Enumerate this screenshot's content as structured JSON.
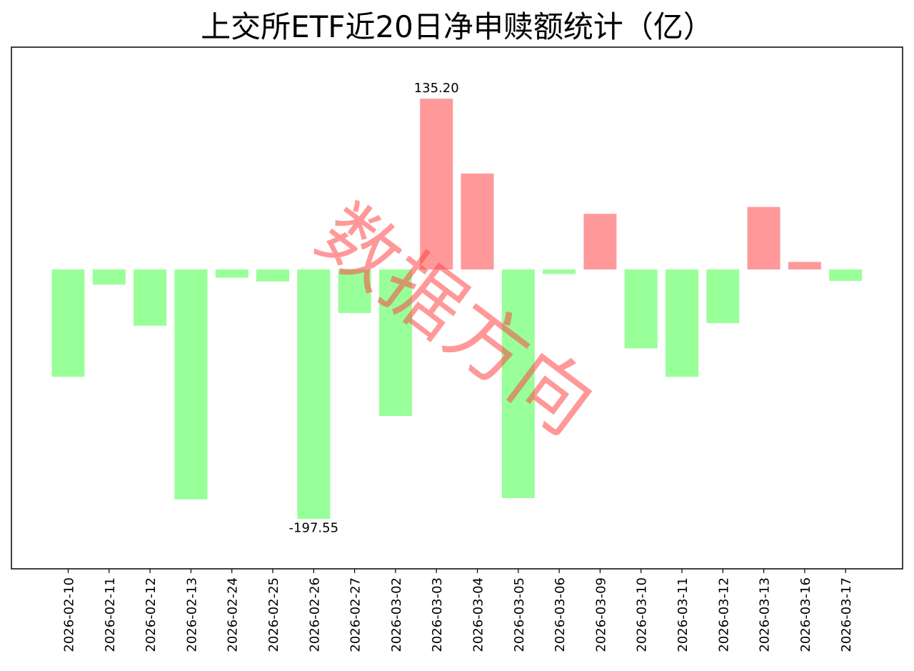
{
  "chart_data": {
    "type": "bar",
    "title": "上交所ETF近20日净申赎额统计（亿）",
    "xlabel": "",
    "ylabel": "",
    "categories": [
      "2026-02-10",
      "2026-02-11",
      "2026-02-12",
      "2026-02-13",
      "2026-02-24",
      "2026-02-25",
      "2026-02-26",
      "2026-02-27",
      "2026-03-02",
      "2026-03-03",
      "2026-03-04",
      "2026-03-05",
      "2026-03-06",
      "2026-03-09",
      "2026-03-10",
      "2026-03-11",
      "2026-03-12",
      "2026-03-13",
      "2026-03-16",
      "2026-03-17"
    ],
    "values": [
      -85,
      -12,
      -44.5,
      -182,
      -6.5,
      -9.5,
      -197.55,
      -34.5,
      -116,
      135.2,
      76,
      -181,
      -3.5,
      44,
      -62.5,
      -85,
      -42.5,
      49.5,
      6,
      -9
    ],
    "ylim": [
      -237,
      176
    ],
    "grid": false,
    "data_labels": [
      {
        "index": 9,
        "text": "135.20"
      },
      {
        "index": 6,
        "text": "-197.55"
      }
    ],
    "colors": {
      "positive": "#ff9999",
      "negative": "#99ff99"
    }
  },
  "watermark": "数据方向"
}
